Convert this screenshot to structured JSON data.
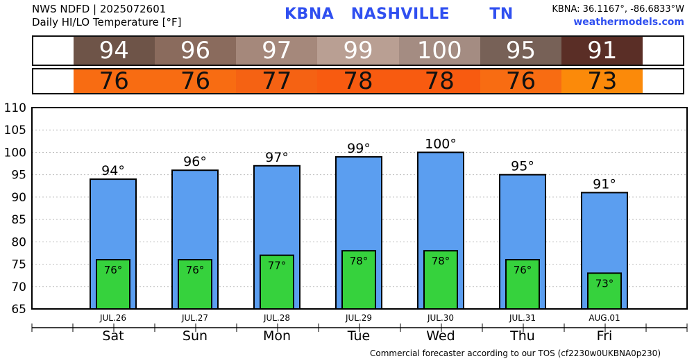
{
  "header": {
    "line1": "NWS NDFD | 2025072601",
    "line2": "Daily HI/LO Temperature [°F]",
    "title": "KBNA   NASHVILLE       TN",
    "coords": "KBNA: 36.1167°, -86.6833°W",
    "site": "weathermodels.com"
  },
  "hi_strip": {
    "values": [
      "94",
      "96",
      "97",
      "99",
      "100",
      "95",
      "91"
    ],
    "colors": [
      "#6e5448",
      "#8a6b5d",
      "#a5887b",
      "#b99f93",
      "#a48c82",
      "#776157",
      "#5a2e26"
    ]
  },
  "lo_strip": {
    "values": [
      "76",
      "76",
      "77",
      "78",
      "78",
      "76",
      "73"
    ],
    "colors": [
      "#f86c12",
      "#f86c12",
      "#f56213",
      "#f85b10",
      "#f85b10",
      "#f86c12",
      "#fb8a0a"
    ]
  },
  "chart_data": {
    "type": "bar",
    "categories": [
      "Sat",
      "Sun",
      "Mon",
      "Tue",
      "Wed",
      "Thu",
      "Fri"
    ],
    "dates": [
      "JUL.26",
      "JUL.27",
      "JUL.28",
      "JUL.29",
      "JUL.30",
      "JUL.31",
      "AUG.01"
    ],
    "series": [
      {
        "values": [
          94,
          96,
          97,
          99,
          100,
          95,
          91
        ],
        "labels": [
          "94°",
          "96°",
          "97°",
          "99°",
          "100°",
          "95°",
          "91°"
        ],
        "color": "#5b9ef0"
      },
      {
        "values": [
          76,
          76,
          77,
          78,
          78,
          76,
          73
        ],
        "labels": [
          "76°",
          "76°",
          "77°",
          "78°",
          "78°",
          "76°",
          "73°"
        ],
        "color": "#36d23d"
      }
    ],
    "ylim": [
      65,
      110
    ],
    "yticks": [
      "65",
      "70",
      "75",
      "80",
      "85",
      "90",
      "95",
      "100",
      "105",
      "110"
    ],
    "grid": true
  },
  "footer": "Commercial forecaster according to our TOS (cf2230w0UKBNA0p230)"
}
